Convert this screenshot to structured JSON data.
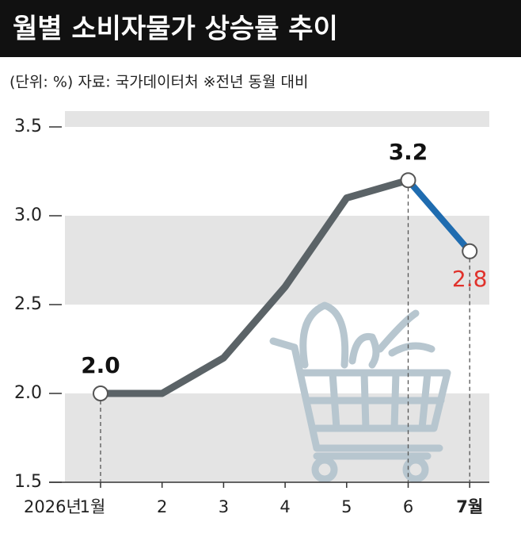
{
  "chart_data": {
    "type": "line",
    "title": "월별 소비자물가 상승률 추이",
    "subtitle": "(단위: %)  자료: 국가데이터처   ※전년 동월 대비",
    "year_label": "2026년",
    "categories": [
      "1월",
      "2",
      "3",
      "4",
      "5",
      "6",
      "7월"
    ],
    "values": [
      2.0,
      2.0,
      2.2,
      2.6,
      3.1,
      3.2,
      2.8
    ],
    "value_labels": [
      "2.0",
      null,
      null,
      null,
      null,
      "3.2",
      "2.8"
    ],
    "color": "#5b6367",
    "highlight_color": "#1f6cb0",
    "highlight_label_color": "#e0312b",
    "ylim": [
      1.5,
      3.5
    ],
    "yticks": [
      {
        "value": 1.5,
        "label": "1.5"
      },
      {
        "value": 2.0,
        "label": "2.0"
      },
      {
        "value": 2.5,
        "label": "2.5"
      },
      {
        "value": 3.0,
        "label": "3.0"
      },
      {
        "value": 3.5,
        "label": "3.5"
      }
    ]
  }
}
